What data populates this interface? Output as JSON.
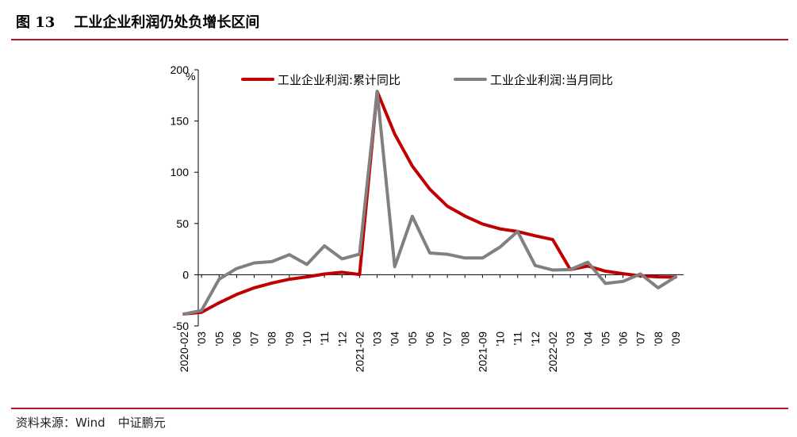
{
  "header": {
    "fig_no": "图 13",
    "title": "工业企业利润仍处负增长区间"
  },
  "footer": {
    "source": "资料来源：Wind",
    "brand": "中证鹏元"
  },
  "colors": {
    "accent_rule": "#b0191e",
    "series_cumulative": "#c00000",
    "series_monthly": "#808080"
  },
  "chart_data": {
    "type": "line",
    "unit_label": "%",
    "ylim": [
      -50,
      200
    ],
    "yticks": [
      -50,
      0,
      50,
      100,
      150,
      200
    ],
    "x_labels": [
      "2020-02",
      "’03",
      "’05",
      "’06",
      "’07",
      "’08",
      "’09",
      "’10",
      "’11",
      "’12",
      "2021-02",
      "’03",
      "’04",
      "’05",
      "’06",
      "’07",
      "’08",
      "2021-09",
      "’10",
      "’11",
      "’12",
      "2022-02",
      "’03",
      "’04",
      "’05",
      "’06",
      "’07",
      "’08",
      "’09"
    ],
    "legend_placement": "top",
    "series": [
      {
        "name": "工业企业利润:累计同比",
        "color": "#c00000",
        "values": [
          -38.3,
          -36.7,
          -27.4,
          -19.3,
          -12.8,
          -8.1,
          -4.4,
          -2.1,
          0.7,
          2.4,
          0.2,
          178.9,
          137.3,
          106.0,
          83.4,
          66.9,
          57.3,
          49.5,
          44.7,
          42.2,
          38.0,
          34.3,
          5.0,
          8.5,
          3.5,
          1.0,
          -1.1,
          -2.1,
          -2.3
        ]
      },
      {
        "name": "工业企业利润:当月同比",
        "color": "#808080",
        "values": [
          -38.3,
          -34.9,
          -4.3,
          6.0,
          11.5,
          12.8,
          19.6,
          10.1,
          28.2,
          15.5,
          20.1,
          178.9,
          7.9,
          57.0,
          21.2,
          20.0,
          16.3,
          16.3,
          27.0,
          42.2,
          9.0,
          4.6,
          5.0,
          12.2,
          -8.5,
          -6.5,
          0.8,
          -12.8,
          -2.1
        ]
      }
    ]
  }
}
